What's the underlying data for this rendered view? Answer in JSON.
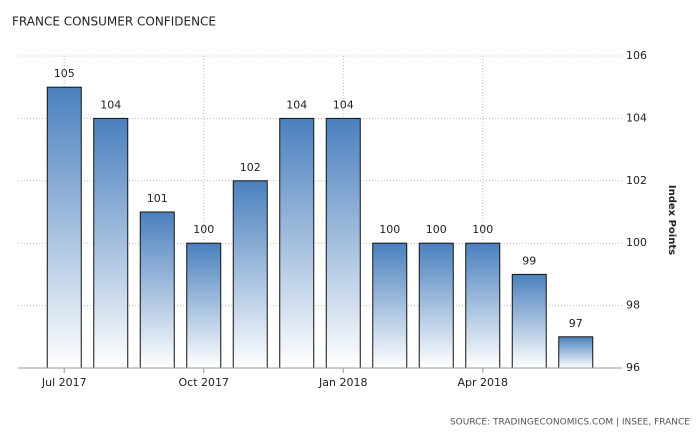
{
  "chart_data": {
    "type": "bar",
    "title": "FRANCE CONSUMER CONFIDENCE",
    "categories": [
      "Jul 2017",
      null,
      null,
      "Oct 2017",
      null,
      null,
      "Jan 2018",
      null,
      null,
      "Apr 2018",
      null,
      null
    ],
    "values": [
      105,
      104,
      101,
      100,
      102,
      104,
      104,
      100,
      100,
      100,
      99,
      97
    ],
    "color": "#4a80be",
    "ylim": [
      96,
      106
    ],
    "yticks": [
      96,
      98,
      100,
      102,
      104,
      106
    ],
    "y_axis_label": "Index Points",
    "y_axis_side": "right",
    "grid": true,
    "source": "SOURCE: TRADINGECONOMICS.COM | INSEE, FRANCE"
  }
}
